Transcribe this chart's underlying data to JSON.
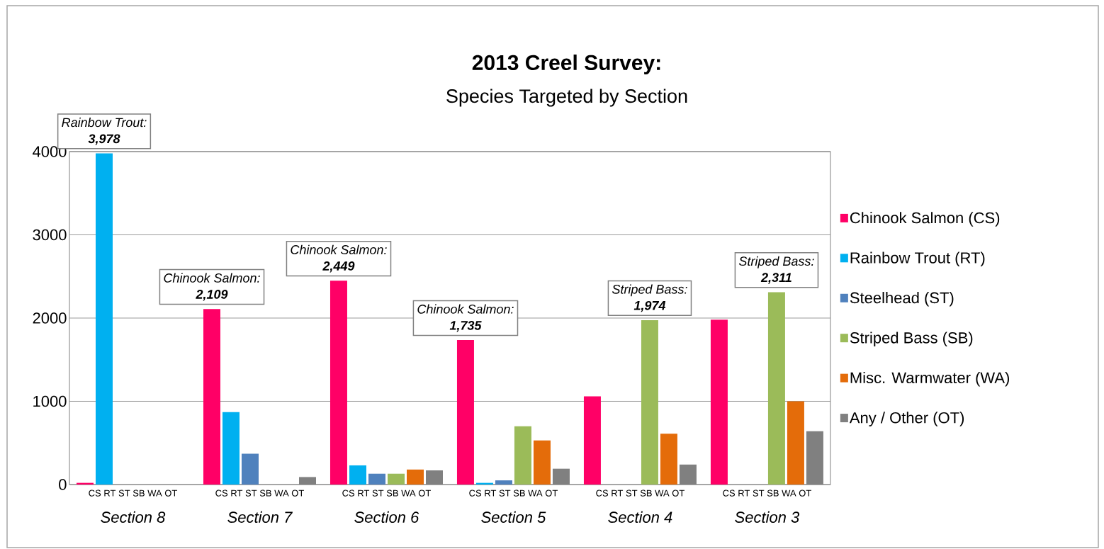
{
  "chart_data": {
    "type": "bar",
    "title": "2013 Creel Survey:",
    "subtitle": "Species Targeted by Section",
    "categories": [
      "Section 8",
      "Section 7",
      "Section 6",
      "Section 5",
      "Section 4",
      "Section 3"
    ],
    "series": [
      {
        "name": "Chinook Salmon (CS)",
        "color": "#ff0066",
        "values": [
          20,
          2109,
          2449,
          1735,
          1060,
          1980
        ],
        "value_labels": [
          null,
          "2,109",
          "2,449",
          "1,735",
          null,
          null
        ]
      },
      {
        "name": "Rainbow Trout (RT)",
        "color": "#00b0f0",
        "values": [
          3978,
          870,
          230,
          20,
          0,
          0
        ],
        "value_labels": [
          "3,978",
          null,
          null,
          null,
          null,
          null
        ]
      },
      {
        "name": "Steelhead (ST)",
        "color": "#4f81bd",
        "values": [
          0,
          370,
          130,
          50,
          0,
          0
        ]
      },
      {
        "name": "Striped Bass (SB)",
        "color": "#9bbb59",
        "values": [
          0,
          0,
          130,
          700,
          1974,
          2311
        ],
        "value_labels": [
          null,
          null,
          null,
          null,
          "1,974",
          "2,311"
        ]
      },
      {
        "name": "Misc. Warmwater (WA)",
        "color": "#e46c0a",
        "values": [
          0,
          0,
          180,
          530,
          610,
          1000
        ]
      },
      {
        "name": "Any / Other (OT)",
        "color": "#808080",
        "values": [
          0,
          90,
          170,
          190,
          240,
          640
        ]
      }
    ],
    "annotations": [
      "Rainbow Trout:",
      "Chinook Salmon:",
      "Chinook Salmon:",
      "Chinook Salmon:",
      "Striped Bass:",
      "Striped Bass:",
      "CS RT ST SB WA OT",
      "CS RT ST SB WA OT",
      "CS RT ST SB WA OT",
      "CS RT ST SB WA OT",
      "CS RT ST SB WA OT",
      "CS RT ST SB WA OT"
    ],
    "ylim": [
      0,
      4000
    ],
    "yticks": [
      0,
      1000,
      2000,
      3000,
      4000
    ],
    "grid": "y",
    "legend": "right"
  }
}
